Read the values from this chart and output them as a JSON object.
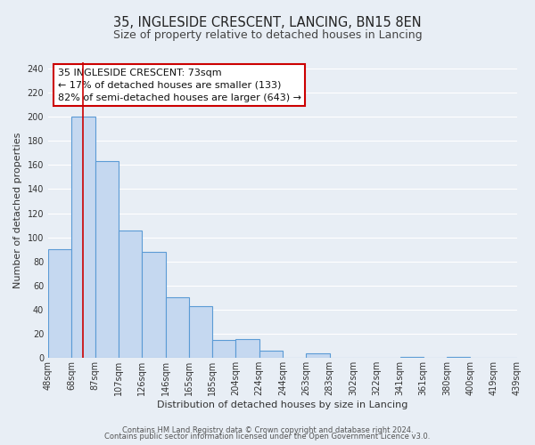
{
  "title": "35, INGLESIDE CRESCENT, LANCING, BN15 8EN",
  "subtitle": "Size of property relative to detached houses in Lancing",
  "xlabel": "Distribution of detached houses by size in Lancing",
  "ylabel": "Number of detached properties",
  "bar_values": [
    90,
    200,
    163,
    106,
    88,
    50,
    43,
    15,
    16,
    6,
    0,
    4,
    0,
    0,
    0,
    1,
    0,
    1,
    0,
    0
  ],
  "tick_labels": [
    "48sqm",
    "68sqm",
    "87sqm",
    "107sqm",
    "126sqm",
    "146sqm",
    "165sqm",
    "185sqm",
    "204sqm",
    "224sqm",
    "244sqm",
    "263sqm",
    "283sqm",
    "302sqm",
    "322sqm",
    "341sqm",
    "361sqm",
    "380sqm",
    "400sqm",
    "419sqm",
    "439sqm"
  ],
  "num_bars": 20,
  "bar_color": "#c5d8f0",
  "bar_edge_color": "#5b9bd5",
  "bar_edge_width": 0.8,
  "vline_x": 1.5,
  "vline_color": "#cc0000",
  "vline_linewidth": 1.2,
  "annotation_title": "35 INGLESIDE CRESCENT: 73sqm",
  "annotation_line1": "← 17% of detached houses are smaller (133)",
  "annotation_line2": "82% of semi-detached houses are larger (643) →",
  "annotation_box_color": "#ffffff",
  "annotation_box_edge_color": "#cc0000",
  "ylim": [
    0,
    245
  ],
  "yticks": [
    0,
    20,
    40,
    60,
    80,
    100,
    120,
    140,
    160,
    180,
    200,
    220,
    240
  ],
  "footer1": "Contains HM Land Registry data © Crown copyright and database right 2024.",
  "footer2": "Contains public sector information licensed under the Open Government Licence v3.0.",
  "bg_color": "#e8eef5",
  "grid_color": "#ffffff",
  "title_fontsize": 10.5,
  "subtitle_fontsize": 9,
  "axis_label_fontsize": 8,
  "tick_fontsize": 7,
  "annotation_title_fontsize": 8.5,
  "annotation_body_fontsize": 8,
  "footer_fontsize": 6
}
